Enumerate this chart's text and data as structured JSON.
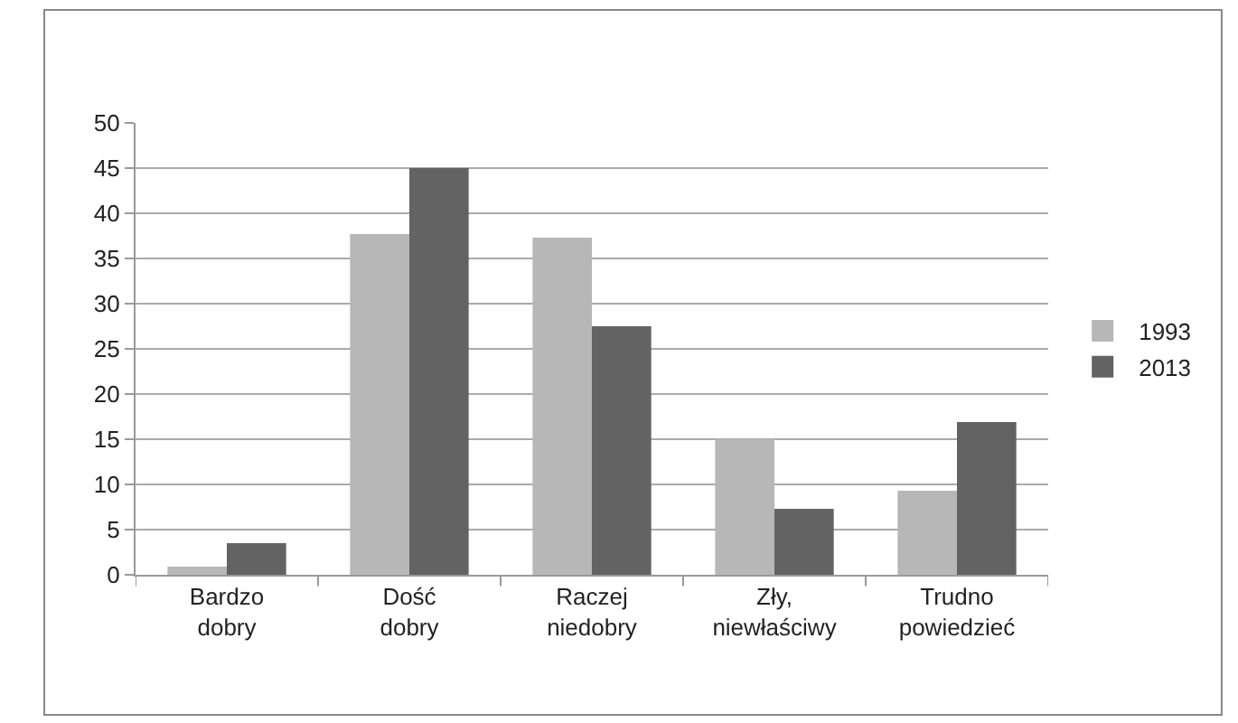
{
  "chart_data": {
    "type": "bar",
    "categories": [
      "Bardzo\ndobry",
      "Dość\ndobry",
      "Raczej\nniedobry",
      "Zły,\nniewłaściwy",
      "Trudno\npowiedzieć"
    ],
    "series": [
      {
        "name": "1993",
        "color": "#b7b7b7",
        "values": [
          0.9,
          37.7,
          37.3,
          15,
          9.3
        ]
      },
      {
        "name": "2013",
        "color": "#636363",
        "values": [
          3.5,
          45,
          27.5,
          7.3,
          16.9
        ]
      }
    ],
    "ylim": [
      0,
      50
    ],
    "yticks": [
      0,
      5,
      10,
      15,
      20,
      25,
      30,
      35,
      40,
      45,
      50
    ],
    "grid": "y",
    "legend": "right"
  }
}
